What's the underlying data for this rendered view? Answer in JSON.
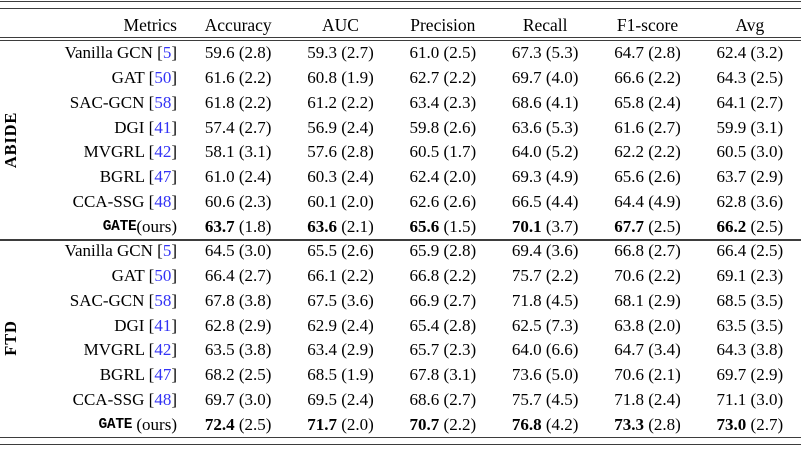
{
  "table": {
    "colors": {
      "citation_blue": "#3333f5",
      "rule": "#3d3d3d",
      "text": "#000000"
    },
    "header": [
      "Metrics",
      "Accuracy",
      "AUC",
      "Precision",
      "Recall",
      "F1-score",
      "Avg"
    ],
    "sections": [
      {
        "label": "ABIDE",
        "rows": [
          {
            "method": "Vanilla GCN",
            "cite": "5",
            "bold": false,
            "cells": [
              [
                "59.6",
                "2.8"
              ],
              [
                "59.3",
                "2.7"
              ],
              [
                "61.0",
                "2.5"
              ],
              [
                "67.3",
                "5.3"
              ],
              [
                "64.7",
                "2.8"
              ],
              [
                "62.4",
                "3.2"
              ]
            ]
          },
          {
            "method": "GAT",
            "cite": "50",
            "bold": false,
            "cells": [
              [
                "61.6",
                "2.2"
              ],
              [
                "60.8",
                "1.9"
              ],
              [
                "62.7",
                "2.2"
              ],
              [
                "69.7",
                "4.0"
              ],
              [
                "66.6",
                "2.2"
              ],
              [
                "64.3",
                "2.5"
              ]
            ]
          },
          {
            "method": "SAC-GCN",
            "cite": "58",
            "bold": false,
            "cells": [
              [
                "61.8",
                "2.2"
              ],
              [
                "61.2",
                "2.2"
              ],
              [
                "63.4",
                "2.3"
              ],
              [
                "68.6",
                "4.1"
              ],
              [
                "65.8",
                "2.4"
              ],
              [
                "64.1",
                "2.7"
              ]
            ]
          },
          {
            "method": "DGI",
            "cite": "41",
            "bold": false,
            "cells": [
              [
                "57.4",
                "2.7"
              ],
              [
                "56.9",
                "2.4"
              ],
              [
                "59.8",
                "2.6"
              ],
              [
                "63.6",
                "5.3"
              ],
              [
                "61.6",
                "2.7"
              ],
              [
                "59.9",
                "3.1"
              ]
            ]
          },
          {
            "method": "MVGRL",
            "cite": "42",
            "bold": false,
            "cells": [
              [
                "58.1",
                "3.1"
              ],
              [
                "57.6",
                "2.8"
              ],
              [
                "60.5",
                "1.7"
              ],
              [
                "64.0",
                "5.2"
              ],
              [
                "62.2",
                "2.2"
              ],
              [
                "60.5",
                "3.0"
              ]
            ]
          },
          {
            "method": "BGRL",
            "cite": "47",
            "bold": false,
            "cells": [
              [
                "61.0",
                "2.4"
              ],
              [
                "60.3",
                "2.4"
              ],
              [
                "62.4",
                "2.0"
              ],
              [
                "69.3",
                "4.9"
              ],
              [
                "65.6",
                "2.6"
              ],
              [
                "63.7",
                "2.9"
              ]
            ]
          },
          {
            "method": "CCA-SSG",
            "cite": "48",
            "bold": false,
            "cells": [
              [
                "60.6",
                "2.3"
              ],
              [
                "60.1",
                "2.0"
              ],
              [
                "62.6",
                "2.6"
              ],
              [
                "66.5",
                "4.4"
              ],
              [
                "64.4",
                "4.9"
              ],
              [
                "62.8",
                "3.6"
              ]
            ]
          },
          {
            "method": "GATE",
            "suffix": "(ours)",
            "bold": true,
            "cells": [
              [
                "63.7",
                "1.8"
              ],
              [
                "63.6",
                "2.1"
              ],
              [
                "65.6",
                "1.5"
              ],
              [
                "70.1",
                "3.7"
              ],
              [
                "67.7",
                "2.5"
              ],
              [
                "66.2",
                "2.5"
              ]
            ]
          }
        ]
      },
      {
        "label": "FTD",
        "rows": [
          {
            "method": "Vanilla GCN",
            "cite": "5",
            "bold": false,
            "cells": [
              [
                "64.5",
                "3.0"
              ],
              [
                "65.5",
                "2.6"
              ],
              [
                "65.9",
                "2.8"
              ],
              [
                "69.4",
                "3.6"
              ],
              [
                "66.8",
                "2.7"
              ],
              [
                "66.4",
                "2.5"
              ]
            ]
          },
          {
            "method": "GAT",
            "cite": "50",
            "bold": false,
            "cells": [
              [
                "66.4",
                "2.7"
              ],
              [
                "66.1",
                "2.2"
              ],
              [
                "66.8",
                "2.2"
              ],
              [
                "75.7",
                "2.2"
              ],
              [
                "70.6",
                "2.2"
              ],
              [
                "69.1",
                "2.3"
              ]
            ]
          },
          {
            "method": "SAC-GCN",
            "cite": "58",
            "bold": false,
            "cells": [
              [
                "67.8",
                "3.8"
              ],
              [
                "67.5",
                "3.6"
              ],
              [
                "66.9",
                "2.7"
              ],
              [
                "71.8",
                "4.5"
              ],
              [
                "68.1",
                "2.9"
              ],
              [
                "68.5",
                "3.5"
              ]
            ]
          },
          {
            "method": "DGI",
            "cite": "41",
            "bold": false,
            "cells": [
              [
                "62.8",
                "2.9"
              ],
              [
                "62.9",
                "2.4"
              ],
              [
                "65.4",
                "2.8"
              ],
              [
                "62.5",
                "7.3"
              ],
              [
                "63.8",
                "2.0"
              ],
              [
                "63.5",
                "3.5"
              ]
            ]
          },
          {
            "method": "MVGRL",
            "cite": "42",
            "bold": false,
            "cells": [
              [
                "63.5",
                "3.8"
              ],
              [
                "63.4",
                "2.9"
              ],
              [
                "65.7",
                "2.3"
              ],
              [
                "64.0",
                "6.6"
              ],
              [
                "64.7",
                "3.4"
              ],
              [
                "64.3",
                "3.8"
              ]
            ]
          },
          {
            "method": "BGRL",
            "cite": "47",
            "bold": false,
            "cells": [
              [
                "68.2",
                "2.5"
              ],
              [
                "68.5",
                "1.9"
              ],
              [
                "67.8",
                "3.1"
              ],
              [
                "73.6",
                "5.0"
              ],
              [
                "70.6",
                "2.1"
              ],
              [
                "69.7",
                "2.9"
              ]
            ]
          },
          {
            "method": "CCA-SSG",
            "cite": "48",
            "bold": false,
            "cells": [
              [
                "69.7",
                "3.0"
              ],
              [
                "69.5",
                "2.4"
              ],
              [
                "68.6",
                "2.7"
              ],
              [
                "75.7",
                "4.5"
              ],
              [
                "71.8",
                "2.4"
              ],
              [
                "71.1",
                "3.0"
              ]
            ]
          },
          {
            "method": "GATE",
            "suffix": " (ours)",
            "bold": true,
            "cells": [
              [
                "72.4",
                "2.5"
              ],
              [
                "71.7",
                "2.0"
              ],
              [
                "70.7",
                "2.2"
              ],
              [
                "76.8",
                "4.2"
              ],
              [
                "73.3",
                "2.8"
              ],
              [
                "73.0",
                "2.7"
              ]
            ]
          }
        ]
      }
    ]
  }
}
